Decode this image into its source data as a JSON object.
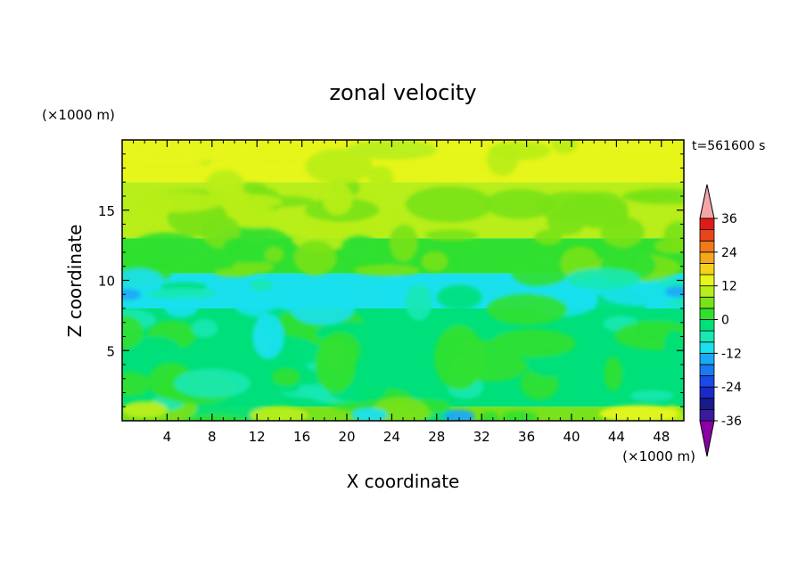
{
  "chart_data": {
    "type": "heatmap",
    "title": "zonal velocity",
    "xlabel": "X coordinate",
    "ylabel": "Z coordinate",
    "x_unit": "(×1000 m)",
    "y_unit": "(×1000 m)",
    "time_label": "t=561600 s",
    "xlim": [
      0,
      50
    ],
    "ylim": [
      0,
      20
    ],
    "x_ticks": [
      4,
      8,
      12,
      16,
      20,
      24,
      28,
      32,
      36,
      40,
      44,
      48
    ],
    "y_ticks": [
      5,
      10,
      15
    ],
    "colorbar": {
      "levels": [
        -36,
        -32,
        -28,
        -24,
        -20,
        -16,
        -12,
        -8,
        -4,
        0,
        4,
        8,
        12,
        16,
        20,
        24,
        28,
        32,
        36
      ],
      "labels": [
        36,
        24,
        12,
        0,
        -12,
        -24,
        -36
      ],
      "colors": [
        "#8a00a6",
        "#3a1a9e",
        "#1a1a8c",
        "#1a2ac8",
        "#1a4ae8",
        "#1a78f0",
        "#1aaaf5",
        "#1ae0ee",
        "#1ae8b4",
        "#00e07a",
        "#30e030",
        "#78e21a",
        "#b8ee1a",
        "#e6f51a",
        "#f5d21a",
        "#f5a61a",
        "#f07a1a",
        "#e8461a",
        "#e01a1a",
        "#f4a6a6"
      ],
      "extend": "both"
    },
    "field_description_bands": [
      {
        "z_range": [
          0,
          1
        ],
        "value_approx": 4
      },
      {
        "z_range": [
          1,
          8
        ],
        "value_approx": -4
      },
      {
        "z_range": [
          8,
          10.5
        ],
        "value_approx": -9
      },
      {
        "z_range": [
          10.5,
          13
        ],
        "value_approx": 3
      },
      {
        "z_range": [
          13,
          17
        ],
        "value_approx": 8
      },
      {
        "z_range": [
          17,
          20
        ],
        "value_approx": 12
      }
    ]
  }
}
